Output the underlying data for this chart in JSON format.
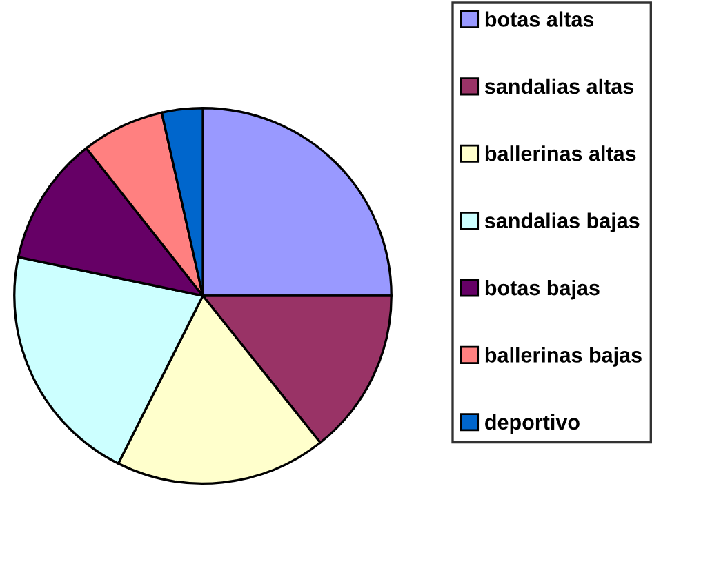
{
  "chart_data": {
    "type": "pie",
    "categories": [
      "botas altas",
      "sandalias altas",
      "ballerinas altas",
      "sandalias bajas",
      "botas bajas",
      "ballerinas bajas",
      "deportivo"
    ],
    "values": [
      25,
      14.3,
      18.1,
      20.9,
      11.1,
      7.1,
      3.5
    ],
    "colors": [
      "#9999ff",
      "#993366",
      "#ffffcc",
      "#ccffff",
      "#660066",
      "#ff8080",
      "#0066cc"
    ],
    "legend": "right"
  }
}
